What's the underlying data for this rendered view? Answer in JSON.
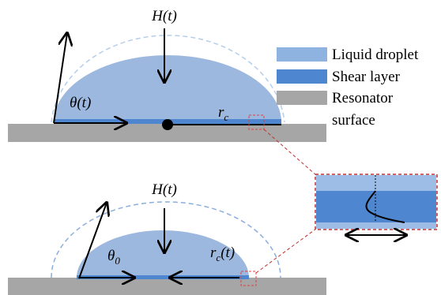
{
  "top": {
    "height": "H(t)",
    "angle": "θ(t)",
    "radius": {
      "base": "r",
      "sub": "c"
    }
  },
  "bottom": {
    "height": "H(t)",
    "angle": {
      "base": "θ",
      "sub": "0"
    },
    "radius": {
      "base": "r",
      "sub": "c",
      "tail": "(t)"
    }
  },
  "legend": {
    "droplet": "Liquid droplet",
    "shear": "Shear layer",
    "resonator": [
      "Resonator",
      "surface"
    ]
  }
}
